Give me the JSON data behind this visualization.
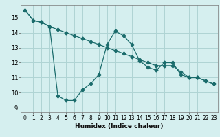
{
  "xlabel": "Humidex (Indice chaleur)",
  "ylabel": "",
  "background_color": "#d5efef",
  "grid_color": "#afd4d4",
  "line_color": "#1a6b6b",
  "xlim": [
    -0.5,
    23.5
  ],
  "ylim": [
    8.7,
    15.8
  ],
  "xticks": [
    0,
    1,
    2,
    3,
    4,
    5,
    6,
    7,
    8,
    9,
    10,
    11,
    12,
    13,
    14,
    15,
    16,
    17,
    18,
    19,
    20,
    21,
    22,
    23
  ],
  "yticks": [
    9,
    10,
    11,
    12,
    13,
    14,
    15
  ],
  "line1_x": [
    0,
    1,
    2,
    3,
    4,
    5,
    6,
    7,
    8,
    9,
    10,
    11,
    12,
    13,
    14,
    15,
    16,
    17,
    18,
    19,
    20,
    21,
    22,
    23
  ],
  "line1_y": [
    15.5,
    14.8,
    14.7,
    14.4,
    9.8,
    9.5,
    9.5,
    10.2,
    10.6,
    11.2,
    13.2,
    14.1,
    13.8,
    13.2,
    12.1,
    11.7,
    11.5,
    12.0,
    12.0,
    11.2,
    11.0,
    11.0,
    10.8,
    10.6
  ],
  "line2_x": [
    0,
    1,
    2,
    3,
    4,
    5,
    6,
    7,
    8,
    9,
    10,
    11,
    12,
    13,
    14,
    15,
    16,
    17,
    18,
    19,
    20,
    21,
    22,
    23
  ],
  "line2_y": [
    15.5,
    14.8,
    14.7,
    14.4,
    14.2,
    14.0,
    13.8,
    13.6,
    13.4,
    13.2,
    13.0,
    12.8,
    12.6,
    12.4,
    12.2,
    12.0,
    11.8,
    11.8,
    11.8,
    11.4,
    11.0,
    11.0,
    10.8,
    10.6
  ]
}
